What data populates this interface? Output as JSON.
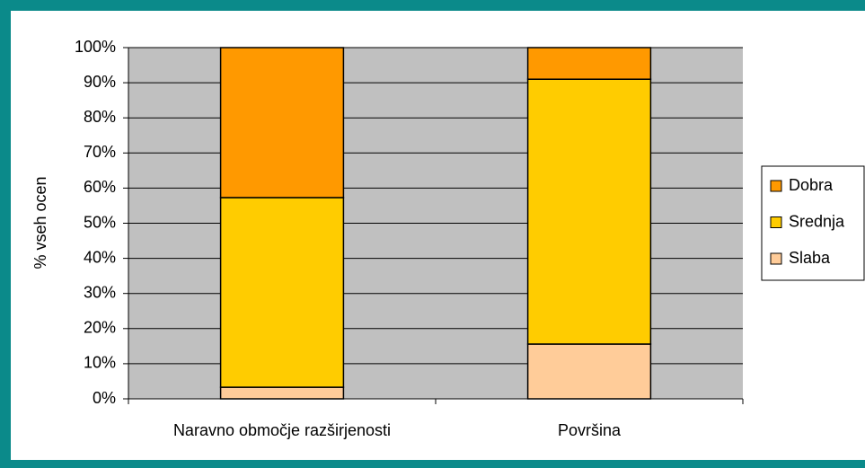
{
  "chart_data": {
    "type": "stacked_bar",
    "categories": [
      "Naravno območje razširjenosti",
      "Površina"
    ],
    "series": [
      {
        "name": "Slaba",
        "color": "#ffcc99",
        "values": [
          3.3,
          15.6
        ]
      },
      {
        "name": "Srednja",
        "color": "#ffcc00",
        "values": [
          54,
          75.4
        ]
      },
      {
        "name": "Dobra",
        "color": "#ff9900",
        "values": [
          42.7,
          9.0
        ]
      }
    ],
    "y_label": "% vseh ocen",
    "ylim": [
      0,
      100
    ],
    "yticks": [
      {
        "value": 0,
        "label": "0%"
      },
      {
        "value": 10,
        "label": "10%"
      },
      {
        "value": 20,
        "label": "20%"
      },
      {
        "value": 30,
        "label": "30%"
      },
      {
        "value": 40,
        "label": "40%"
      },
      {
        "value": 50,
        "label": "50%"
      },
      {
        "value": 60,
        "label": "60%"
      },
      {
        "value": 70,
        "label": "70%"
      },
      {
        "value": 80,
        "label": "80%"
      },
      {
        "value": 90,
        "label": "90%"
      },
      {
        "value": 100,
        "label": "100%"
      }
    ],
    "grid": true,
    "legend": "right"
  }
}
